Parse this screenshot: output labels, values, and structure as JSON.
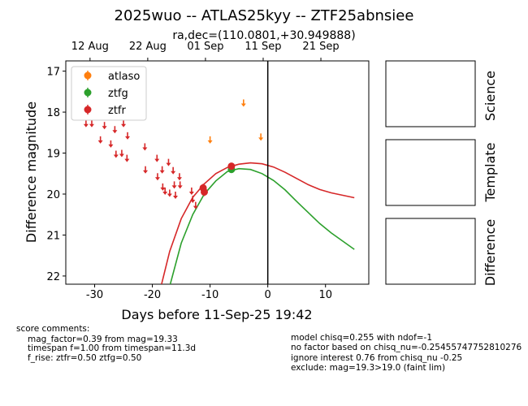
{
  "figure": {
    "title": "2025wuo -- ATLAS25kyy -- ZTF25abnsiee",
    "subtitle": "ra,dec=(110.0801,+30.949888)"
  },
  "panels": {
    "science": "Science",
    "template": "Template",
    "difference": "Difference"
  },
  "comments": {
    "left": [
      "score comments:",
      "mag_factor=0.39 from mag=19.33",
      "timespan f=1.00 from timespan=11.3d",
      "f_rise: ztfr=0.50 ztfg=0.50"
    ],
    "right": [
      "model chisq=0.255 with ndof=-1",
      "no factor based on chisq_nu=-0.25455747752810276",
      "ignore interest 0.76 from chisq_nu -0.25",
      "exclude: mag=19.3>19.0 (faint lim)"
    ]
  },
  "chart_data": {
    "type": "scatter",
    "xlabel": "Days before 11-Sep-25 19:42",
    "ylabel": "Difference magnitude",
    "xlim": [
      -35,
      17.5
    ],
    "ylim": [
      22.2,
      16.75
    ],
    "y_inverted": true,
    "x_ticks": [
      -30,
      -20,
      -10,
      0,
      10
    ],
    "y_ticks": [
      17,
      18,
      19,
      20,
      21,
      22
    ],
    "top_axis": {
      "tick_labels": [
        "12 Aug",
        "22 Aug",
        "01 Sep",
        "11 Sep",
        "21 Sep"
      ],
      "tick_x": [
        -30.8,
        -20.8,
        -10.8,
        -0.8,
        9.2
      ]
    },
    "vertical_line_x": 0,
    "legend": {
      "position": "top-left",
      "entries": [
        "atlaso",
        "ztfg",
        "ztfr"
      ]
    },
    "colors": {
      "atlaso": "#ff7f0e",
      "ztfg": "#2ca02c",
      "ztfr": "#d62728"
    },
    "series": [
      {
        "name": "atlaso",
        "upper_limits": [
          {
            "x": -4.2,
            "y": 17.75
          },
          {
            "x": -10,
            "y": 18.65
          },
          {
            "x": -1.2,
            "y": 18.58
          }
        ],
        "detections": []
      },
      {
        "name": "ztfg",
        "upper_limits": [],
        "detections": [
          {
            "x": -6.3,
            "y": 19.4,
            "err": 0.08
          }
        ]
      },
      {
        "name": "ztfr",
        "upper_limits": [
          {
            "x": -31.5,
            "y": 18.25
          },
          {
            "x": -30.5,
            "y": 18.25
          },
          {
            "x": -29,
            "y": 18.65
          },
          {
            "x": -28.3,
            "y": 18.3
          },
          {
            "x": -27.2,
            "y": 18.75
          },
          {
            "x": -26.5,
            "y": 18.4
          },
          {
            "x": -26.3,
            "y": 19.0
          },
          {
            "x": -25.3,
            "y": 18.98
          },
          {
            "x": -25,
            "y": 18.25
          },
          {
            "x": -24.4,
            "y": 19.1
          },
          {
            "x": -24.3,
            "y": 18.55
          },
          {
            "x": -21.3,
            "y": 18.82
          },
          {
            "x": -21.2,
            "y": 19.38
          },
          {
            "x": -19.2,
            "y": 19.1
          },
          {
            "x": -19.1,
            "y": 19.55
          },
          {
            "x": -18.3,
            "y": 19.38
          },
          {
            "x": -18.2,
            "y": 19.8
          },
          {
            "x": -17.8,
            "y": 19.9
          },
          {
            "x": -17.2,
            "y": 19.2
          },
          {
            "x": -17.0,
            "y": 19.95
          },
          {
            "x": -16.4,
            "y": 19.4
          },
          {
            "x": -16.2,
            "y": 19.75
          },
          {
            "x": -16.0,
            "y": 20.0
          },
          {
            "x": -15.3,
            "y": 19.55
          },
          {
            "x": -15.2,
            "y": 19.75
          },
          {
            "x": -13.2,
            "y": 19.9
          },
          {
            "x": -13.0,
            "y": 20.1
          },
          {
            "x": -12.5,
            "y": 20.25
          }
        ],
        "detections": [
          {
            "x": -11.2,
            "y": 19.85,
            "err": 0.1
          },
          {
            "x": -11.0,
            "y": 19.95,
            "err": 0.1
          },
          {
            "x": -6.3,
            "y": 19.32,
            "err": 0.08
          }
        ]
      }
    ],
    "model_curves": [
      {
        "name": "ztfr",
        "points": [
          [
            -18.4,
            22.2
          ],
          [
            -17,
            21.4
          ],
          [
            -15,
            20.6
          ],
          [
            -13,
            20.08
          ],
          [
            -11,
            19.75
          ],
          [
            -9,
            19.5
          ],
          [
            -7,
            19.35
          ],
          [
            -5,
            19.27
          ],
          [
            -3,
            19.24
          ],
          [
            -1,
            19.26
          ],
          [
            1,
            19.34
          ],
          [
            3,
            19.47
          ],
          [
            5,
            19.62
          ],
          [
            7,
            19.77
          ],
          [
            9,
            19.89
          ],
          [
            11,
            19.97
          ],
          [
            13,
            20.03
          ],
          [
            15,
            20.09
          ]
        ]
      },
      {
        "name": "ztfg",
        "points": [
          [
            -16.9,
            22.2
          ],
          [
            -15,
            21.2
          ],
          [
            -13,
            20.5
          ],
          [
            -11,
            20.0
          ],
          [
            -9,
            19.68
          ],
          [
            -7,
            19.45
          ],
          [
            -5,
            19.38
          ],
          [
            -3,
            19.4
          ],
          [
            -1,
            19.5
          ],
          [
            1,
            19.67
          ],
          [
            3,
            19.9
          ],
          [
            5,
            20.18
          ],
          [
            7,
            20.45
          ],
          [
            9,
            20.72
          ],
          [
            11,
            20.95
          ],
          [
            13,
            21.15
          ],
          [
            15,
            21.35
          ]
        ]
      }
    ]
  }
}
